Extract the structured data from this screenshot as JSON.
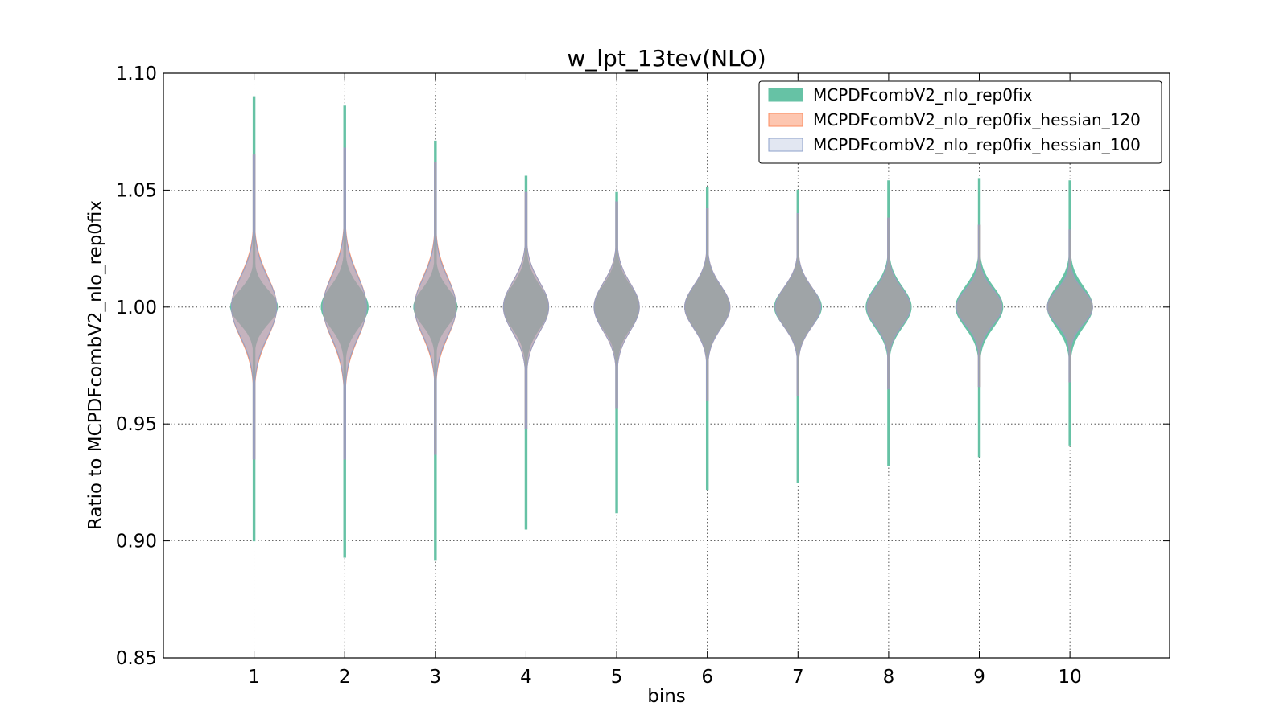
{
  "chart_data": {
    "type": "violin",
    "title": "w_lpt_13tev(NLO)",
    "xlabel": "bins",
    "ylabel": "Ratio to MCPDFcombV2_nlo_rep0fix",
    "ylim": [
      0.85,
      1.1
    ],
    "xlim": [
      0,
      11.1
    ],
    "grid": true,
    "legend_position": "top-right",
    "categories": [
      1,
      2,
      3,
      4,
      5,
      6,
      7,
      8,
      9,
      10
    ],
    "x_ticks": [
      1,
      2,
      3,
      4,
      5,
      6,
      7,
      8,
      9,
      10
    ],
    "y_ticks": [
      0.85,
      0.9,
      0.95,
      1.0,
      1.05,
      1.1
    ],
    "y_tick_labels": [
      "0.85",
      "0.90",
      "0.95",
      "1.00",
      "1.05",
      "1.10"
    ],
    "series": [
      {
        "name": "MCPDFcombV2_nlo_rep0fix",
        "color": "#66c2a5",
        "min": [
          0.9,
          0.893,
          0.892,
          0.905,
          0.912,
          0.922,
          0.925,
          0.932,
          0.936,
          0.941
        ],
        "max": [
          1.09,
          1.086,
          1.071,
          1.056,
          1.049,
          1.051,
          1.05,
          1.054,
          1.055,
          1.054
        ],
        "sd": [
          0.007,
          0.0085,
          0.0075,
          0.009,
          0.009,
          0.0085,
          0.008,
          0.0085,
          0.0085,
          0.0085
        ],
        "peak_width": [
          0.26,
          0.26,
          0.24,
          0.25,
          0.25,
          0.25,
          0.26,
          0.25,
          0.26,
          0.25
        ]
      },
      {
        "name": "MCPDFcombV2_nlo_rep0fix_hessian_120",
        "color": "#fc8d62",
        "min": [
          0.935,
          0.935,
          0.937,
          0.948,
          0.957,
          0.96,
          0.962,
          0.965,
          0.966,
          0.968
        ],
        "max": [
          1.065,
          1.068,
          1.062,
          1.049,
          1.045,
          1.042,
          1.04,
          1.038,
          1.035,
          1.033
        ],
        "sd": [
          0.013,
          0.0135,
          0.0125,
          0.0105,
          0.01,
          0.009,
          0.0085,
          0.008,
          0.0075,
          0.007
        ],
        "peak_width": [
          0.25,
          0.24,
          0.23,
          0.25,
          0.25,
          0.25,
          0.25,
          0.24,
          0.25,
          0.25
        ]
      },
      {
        "name": "MCPDFcombV2_nlo_rep0fix_hessian_100",
        "color": "#8da0cb",
        "min": [
          0.935,
          0.935,
          0.937,
          0.948,
          0.957,
          0.96,
          0.962,
          0.965,
          0.966,
          0.968
        ],
        "max": [
          1.065,
          1.068,
          1.062,
          1.049,
          1.045,
          1.042,
          1.04,
          1.038,
          1.035,
          1.033
        ],
        "sd": [
          0.0125,
          0.013,
          0.012,
          0.0105,
          0.01,
          0.009,
          0.0085,
          0.008,
          0.0075,
          0.007
        ],
        "peak_width": [
          0.25,
          0.24,
          0.23,
          0.25,
          0.25,
          0.25,
          0.25,
          0.24,
          0.25,
          0.25
        ]
      }
    ]
  }
}
